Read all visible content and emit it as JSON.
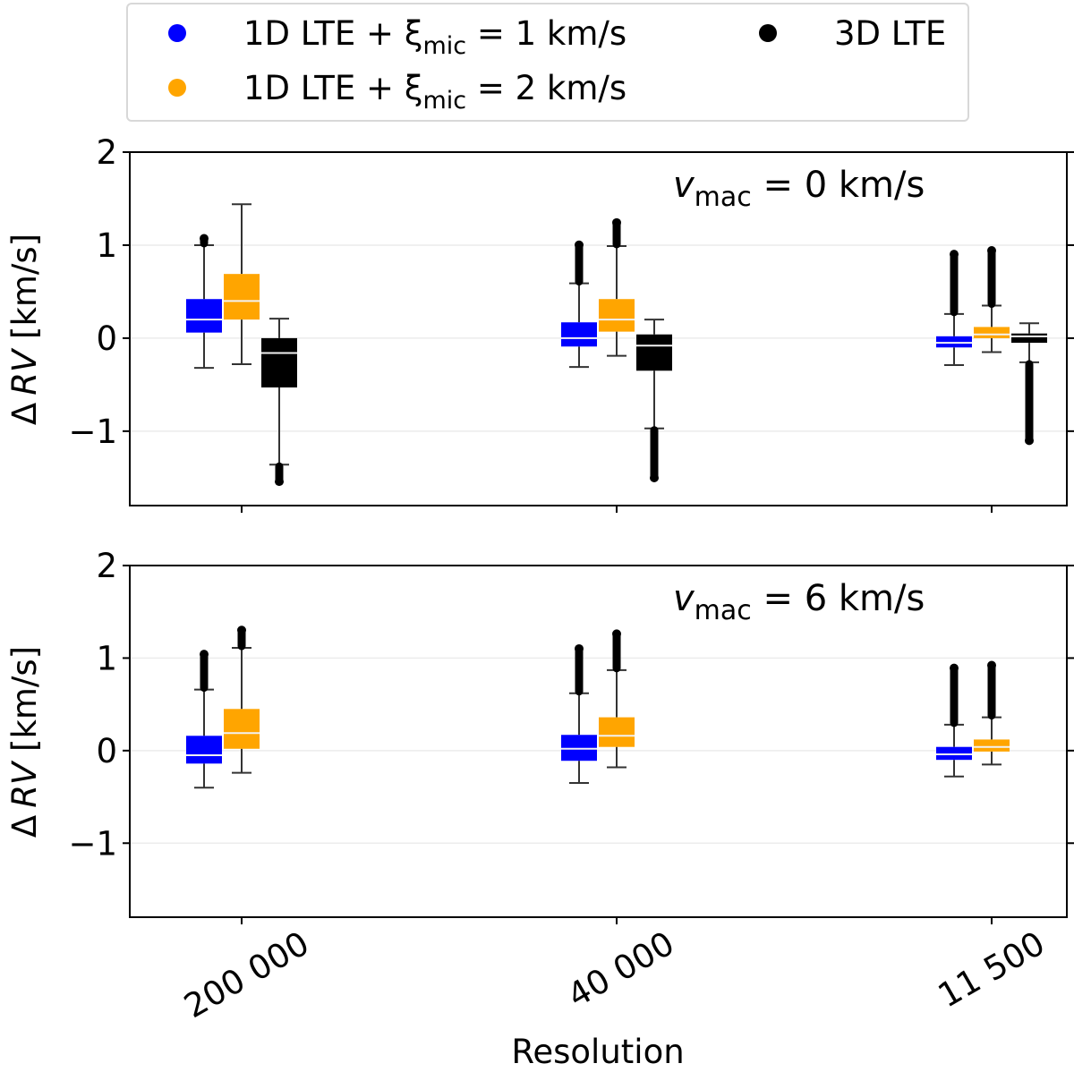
{
  "chart_data": {
    "type": "boxplot",
    "xlabel": "Resolution",
    "ylabel": "Δ RV [km/s]",
    "ylabel_parts": {
      "delta": "Δ",
      "var": "RV",
      "unit": " [km/s]"
    },
    "categories": [
      "200 000",
      "40 000",
      "11 500"
    ],
    "ylim": [
      -1.8,
      2
    ],
    "yticks": [
      -1,
      0,
      1,
      2
    ],
    "ytick_labels": [
      "−1",
      "0",
      "1",
      "2"
    ],
    "grid": "horizontal",
    "legend": {
      "placement": "top",
      "entries": [
        {
          "key": "1d_xi1",
          "label_prefix": "1D LTE + ξ",
          "label_sub": "mic",
          "label_suffix": " = 1 km/s",
          "color": "#0000ff"
        },
        {
          "key": "1d_xi2",
          "label_prefix": "1D LTE + ξ",
          "label_sub": "mic",
          "label_suffix": " = 2 km/s",
          "color": "#ffa500"
        },
        {
          "key": "3d",
          "label_prefix": "3D LTE",
          "label_sub": "",
          "label_suffix": "",
          "color": "#000000"
        }
      ]
    },
    "panels": [
      {
        "annotation": {
          "var": "v",
          "sub": "mac",
          "rest": " = 0 km/s"
        },
        "series": [
          {
            "name": "1D LTE + ξmic = 1 km/s",
            "color": "#0000ff",
            "boxes": [
              {
                "q1": 0.06,
                "median": 0.2,
                "q3": 0.42,
                "whislo": -0.32,
                "whishi": 1.0,
                "fliers_max": 1.11,
                "fliers_min": null
              },
              {
                "q1": -0.09,
                "median": 0.0,
                "q3": 0.17,
                "whislo": -0.31,
                "whishi": 0.59,
                "fliers_max": 1.04,
                "fliers_min": null
              },
              {
                "q1": -0.1,
                "median": -0.05,
                "q3": 0.02,
                "whislo": -0.29,
                "whishi": 0.26,
                "fliers_max": 0.94,
                "fliers_min": null
              }
            ]
          },
          {
            "name": "1D LTE + ξmic = 2 km/s",
            "color": "#ffa500",
            "boxes": [
              {
                "q1": 0.2,
                "median": 0.4,
                "q3": 0.69,
                "whislo": -0.28,
                "whishi": 1.44,
                "fliers_max": null,
                "fliers_min": null
              },
              {
                "q1": 0.07,
                "median": 0.2,
                "q3": 0.42,
                "whislo": -0.19,
                "whishi": 0.99,
                "fliers_max": 1.28,
                "fliers_min": null
              },
              {
                "q1": 0.0,
                "median": 0.04,
                "q3": 0.12,
                "whislo": -0.15,
                "whishi": 0.35,
                "fliers_max": 0.98,
                "fliers_min": null
              }
            ]
          },
          {
            "name": "3D LTE",
            "color": "#000000",
            "boxes": [
              {
                "q1": -0.53,
                "median": -0.16,
                "q3": 0.0,
                "whislo": -1.36,
                "whishi": 0.21,
                "fliers_max": null,
                "fliers_min": -1.58
              },
              {
                "q1": -0.35,
                "median": -0.08,
                "q3": 0.04,
                "whislo": -0.97,
                "whishi": 0.2,
                "fliers_max": null,
                "fliers_min": -1.54
              },
              {
                "q1": -0.05,
                "median": 0.02,
                "q3": 0.05,
                "whislo": -0.26,
                "whishi": 0.16,
                "fliers_max": null,
                "fliers_min": -1.14
              }
            ]
          }
        ]
      },
      {
        "annotation": {
          "var": "v",
          "sub": "mac",
          "rest": " = 6 km/s"
        },
        "series": [
          {
            "name": "1D LTE + ξmic = 1 km/s",
            "color": "#0000ff",
            "boxes": [
              {
                "q1": -0.14,
                "median": -0.05,
                "q3": 0.16,
                "whislo": -0.4,
                "whishi": 0.66,
                "fliers_max": 1.08,
                "fliers_min": null
              },
              {
                "q1": -0.11,
                "median": 0.02,
                "q3": 0.17,
                "whislo": -0.35,
                "whishi": 0.62,
                "fliers_max": 1.14,
                "fliers_min": null
              },
              {
                "q1": -0.1,
                "median": -0.04,
                "q3": 0.04,
                "whislo": -0.28,
                "whishi": 0.28,
                "fliers_max": 0.93,
                "fliers_min": null
              }
            ]
          },
          {
            "name": "1D LTE + ξmic = 2 km/s",
            "color": "#ffa500",
            "boxes": [
              {
                "q1": 0.02,
                "median": 0.19,
                "q3": 0.45,
                "whislo": -0.24,
                "whishi": 1.11,
                "fliers_max": 1.34,
                "fliers_min": null
              },
              {
                "q1": 0.04,
                "median": 0.16,
                "q3": 0.36,
                "whislo": -0.18,
                "whishi": 0.87,
                "fliers_max": 1.3,
                "fliers_min": null
              },
              {
                "q1": -0.01,
                "median": 0.04,
                "q3": 0.12,
                "whislo": -0.15,
                "whishi": 0.36,
                "fliers_max": 0.96,
                "fliers_min": null
              }
            ]
          }
        ]
      }
    ]
  }
}
